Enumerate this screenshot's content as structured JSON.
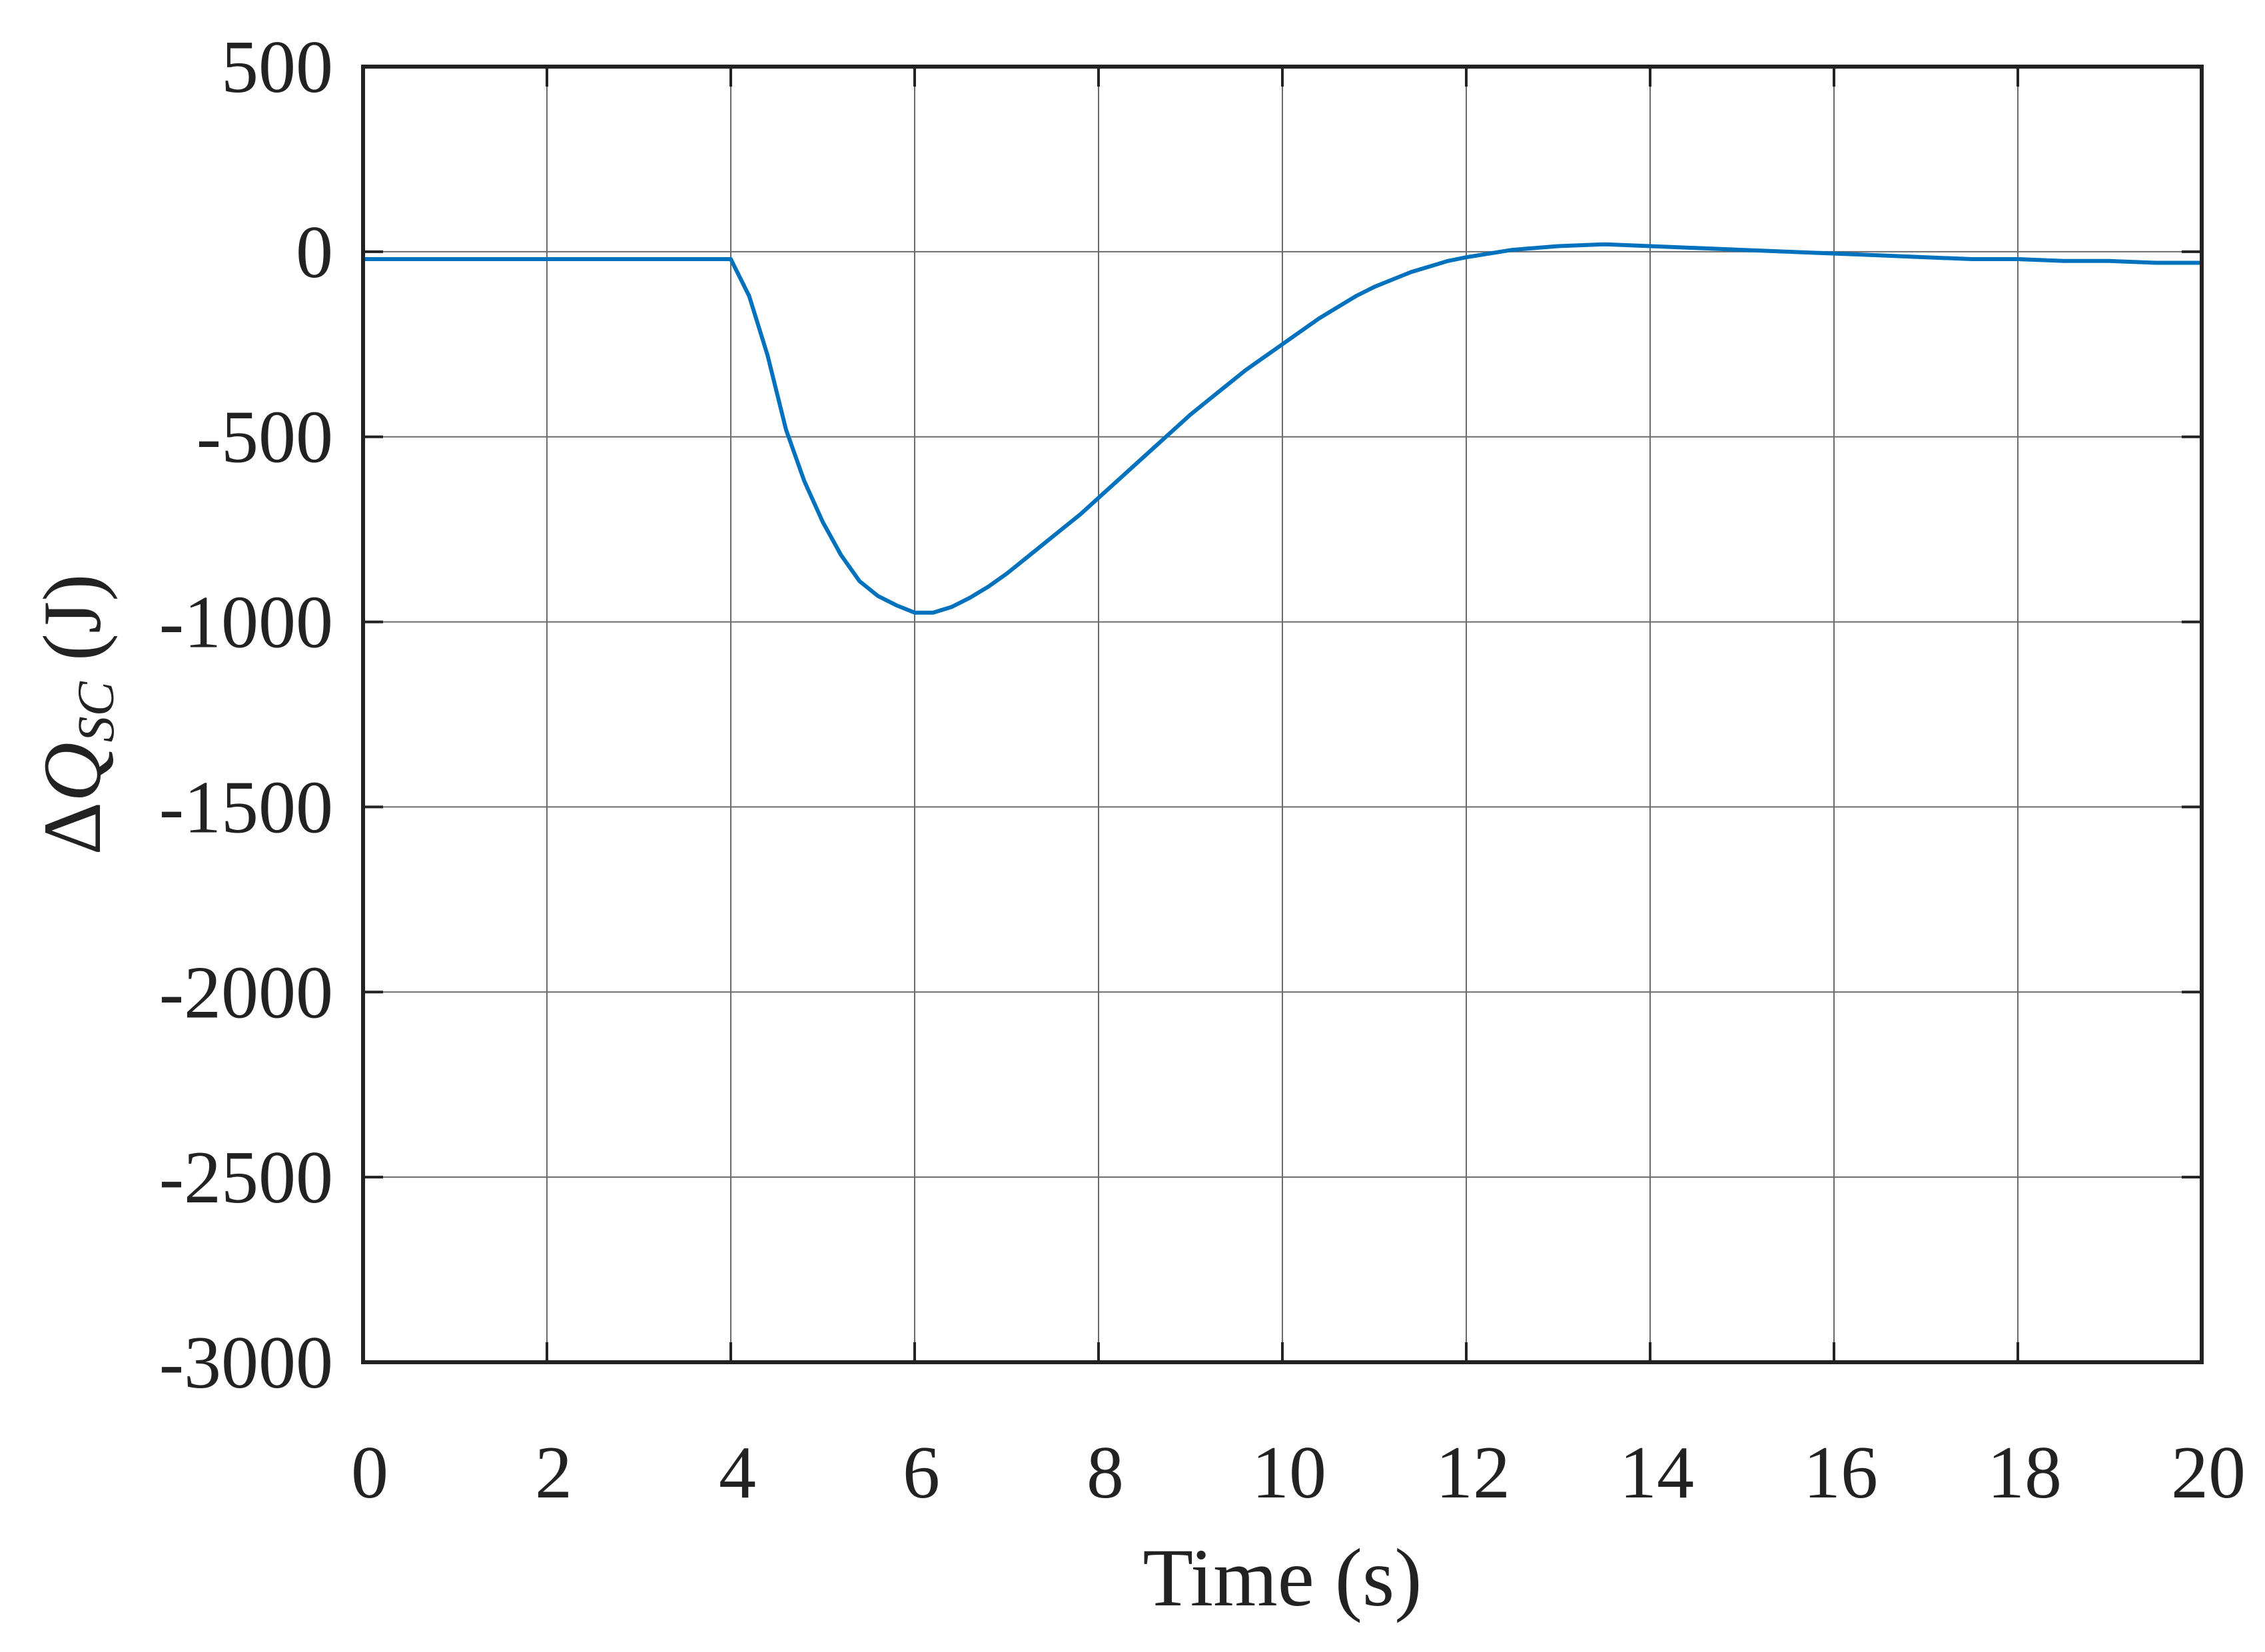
{
  "chart_data": {
    "type": "line",
    "title": "",
    "xlabel": "Time (s)",
    "ylabel": {
      "delta": "Δ",
      "symbol": "Q",
      "subscript": "SC",
      "unit": " (J)"
    },
    "xlim": [
      0,
      20
    ],
    "ylim": [
      -3000,
      500
    ],
    "xticks": [
      0,
      2,
      4,
      6,
      8,
      10,
      12,
      14,
      16,
      18,
      20
    ],
    "yticks": [
      500,
      0,
      -500,
      -1000,
      -1500,
      -2000,
      -2500,
      -3000
    ],
    "xtick_labels": [
      "0",
      "2",
      "4",
      "6",
      "8",
      "10",
      "12",
      "14",
      "16",
      "18",
      "20"
    ],
    "ytick_labels": [
      "500",
      "0",
      "-500",
      "-1000",
      "-1500",
      "-2000",
      "-2500",
      "-3000"
    ],
    "grid": true,
    "line_color": "#0072BD",
    "series": [
      {
        "x": [
          0,
          0.5,
          1,
          1.5,
          2,
          2.5,
          3,
          3.5,
          4,
          4.2,
          4.4,
          4.6,
          4.8,
          5,
          5.2,
          5.4,
          5.6,
          5.8,
          6,
          6.2,
          6.4,
          6.6,
          6.8,
          7,
          7.2,
          7.4,
          7.6,
          7.8,
          8,
          8.2,
          8.4,
          8.6,
          8.8,
          9,
          9.2,
          9.4,
          9.6,
          9.8,
          10,
          10.2,
          10.4,
          10.6,
          10.8,
          11,
          11.2,
          11.4,
          11.6,
          11.8,
          12,
          12.5,
          13,
          13.5,
          14,
          14.5,
          15,
          15.5,
          16,
          16.5,
          17,
          17.5,
          18,
          18.5,
          19,
          19.5,
          20
        ],
        "y": [
          -20,
          -20,
          -20,
          -20,
          -20,
          -20,
          -20,
          -20,
          -20,
          -120,
          -280,
          -480,
          -620,
          -730,
          -820,
          -890,
          -930,
          -955,
          -975,
          -975,
          -960,
          -935,
          -905,
          -870,
          -830,
          -790,
          -750,
          -710,
          -665,
          -620,
          -575,
          -530,
          -485,
          -440,
          -400,
          -360,
          -320,
          -285,
          -250,
          -215,
          -180,
          -150,
          -120,
          -95,
          -75,
          -55,
          -40,
          -25,
          -15,
          5,
          15,
          20,
          15,
          10,
          5,
          0,
          -5,
          -10,
          -15,
          -20,
          -20,
          -25,
          -25,
          -30,
          -30
        ]
      }
    ]
  }
}
